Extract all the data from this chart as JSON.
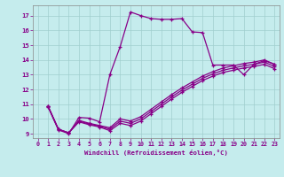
{
  "xlabel": "Windchill (Refroidissement éolien,°C)",
  "background_color": "#c5eced",
  "grid_color": "#a0cece",
  "line_color": "#880088",
  "xlim": [
    -0.5,
    23.5
  ],
  "ylim": [
    8.7,
    17.7
  ],
  "yticks": [
    9,
    10,
    11,
    12,
    13,
    14,
    15,
    16,
    17
  ],
  "xticks": [
    0,
    1,
    2,
    3,
    4,
    5,
    6,
    7,
    8,
    9,
    10,
    11,
    12,
    13,
    14,
    15,
    16,
    17,
    18,
    19,
    20,
    21,
    22,
    23
  ],
  "series1_x": [
    1,
    2,
    3,
    4,
    5,
    6,
    7,
    8,
    9,
    10,
    11,
    12,
    13,
    14,
    15,
    16,
    17,
    18,
    19,
    20,
    21,
    22,
    23
  ],
  "series1_y": [
    10.8,
    9.25,
    9.0,
    10.1,
    10.05,
    9.8,
    13.0,
    14.9,
    17.25,
    17.0,
    16.8,
    16.75,
    16.75,
    16.8,
    15.9,
    15.85,
    13.65,
    13.65,
    13.65,
    13.0,
    13.7,
    13.95,
    13.7
  ],
  "series2_x": [
    1,
    2,
    3,
    4,
    5,
    6,
    7,
    8,
    9,
    10,
    11,
    12,
    13,
    14,
    15,
    16,
    17,
    18,
    19,
    20,
    21,
    22,
    23
  ],
  "series2_y": [
    10.85,
    9.3,
    9.05,
    9.9,
    9.7,
    9.55,
    9.4,
    10.0,
    9.85,
    10.15,
    10.65,
    11.15,
    11.65,
    12.1,
    12.5,
    12.9,
    13.2,
    13.45,
    13.6,
    13.75,
    13.85,
    14.0,
    13.7
  ],
  "series3_x": [
    1,
    2,
    3,
    4,
    5,
    6,
    7,
    8,
    9,
    10,
    11,
    12,
    13,
    14,
    15,
    16,
    17,
    18,
    19,
    20,
    21,
    22,
    23
  ],
  "series3_y": [
    10.85,
    9.3,
    9.05,
    9.85,
    9.65,
    9.5,
    9.3,
    9.85,
    9.7,
    10.0,
    10.5,
    11.0,
    11.5,
    11.95,
    12.35,
    12.75,
    13.05,
    13.3,
    13.45,
    13.6,
    13.7,
    13.85,
    13.55
  ],
  "series4_x": [
    1,
    2,
    3,
    4,
    5,
    6,
    7,
    8,
    9,
    10,
    11,
    12,
    13,
    14,
    15,
    16,
    17,
    18,
    19,
    20,
    21,
    22,
    23
  ],
  "series4_y": [
    10.85,
    9.3,
    9.05,
    9.8,
    9.6,
    9.45,
    9.2,
    9.7,
    9.55,
    9.85,
    10.35,
    10.85,
    11.35,
    11.8,
    12.2,
    12.6,
    12.9,
    13.15,
    13.3,
    13.45,
    13.55,
    13.7,
    13.4
  ]
}
